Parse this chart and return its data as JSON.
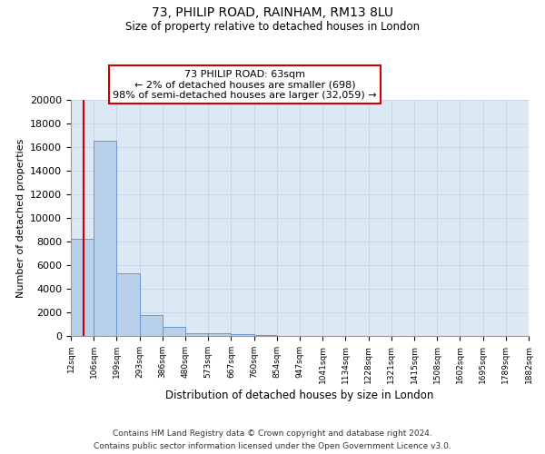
{
  "title": "73, PHILIP ROAD, RAINHAM, RM13 8LU",
  "subtitle": "Size of property relative to detached houses in London",
  "xlabel": "Distribution of detached houses by size in London",
  "ylabel": "Number of detached properties",
  "bin_labels": [
    "12sqm",
    "106sqm",
    "199sqm",
    "293sqm",
    "386sqm",
    "480sqm",
    "573sqm",
    "667sqm",
    "760sqm",
    "854sqm",
    "947sqm",
    "1041sqm",
    "1134sqm",
    "1228sqm",
    "1321sqm",
    "1415sqm",
    "1508sqm",
    "1602sqm",
    "1695sqm",
    "1789sqm",
    "1882sqm"
  ],
  "bar_values": [
    8200,
    16500,
    5300,
    1750,
    750,
    200,
    200,
    150,
    100,
    0,
    0,
    0,
    0,
    0,
    0,
    0,
    0,
    0,
    0,
    0
  ],
  "bar_color": "#b8d0ea",
  "bar_edge_color": "#6699cc",
  "annotation_line1": "73 PHILIP ROAD: 63sqm",
  "annotation_line2": "← 2% of detached houses are smaller (698)",
  "annotation_line3": "98% of semi-detached houses are larger (32,059) →",
  "annotation_box_color": "#ffffff",
  "annotation_box_edge_color": "#cc0000",
  "property_line_color": "#cc0000",
  "ylim": [
    0,
    20000
  ],
  "yticks": [
    0,
    2000,
    4000,
    6000,
    8000,
    10000,
    12000,
    14000,
    16000,
    18000,
    20000
  ],
  "grid_color": "#c8d8e8",
  "bg_color": "#dce8f4",
  "fig_bg_color": "#ffffff",
  "footer_line1": "Contains HM Land Registry data © Crown copyright and database right 2024.",
  "footer_line2": "Contains public sector information licensed under the Open Government Licence v3.0."
}
